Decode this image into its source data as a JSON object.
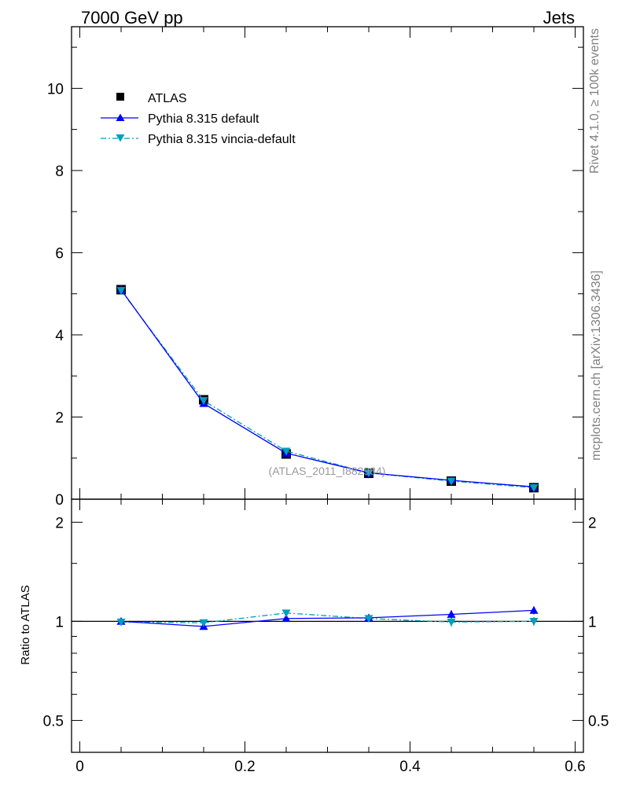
{
  "header": {
    "left_title": "7000 GeV pp",
    "right_title": "Jets"
  },
  "side_text": {
    "rivet": "Rivet 4.1.0, ≥ 100k events",
    "mcplots": "mcplots.cern.ch [arXiv:1306.3436]"
  },
  "watermark": "(ATLAS_2011_I882984)",
  "colors": {
    "data": "#000000",
    "pythia_default": "#0000ff",
    "pythia_vincia": "#009fbf"
  },
  "chart_data": [
    {
      "type": "line",
      "panel": "main",
      "x": [
        0.05,
        0.15,
        0.25,
        0.35,
        0.45,
        0.55
      ],
      "xlim": [
        -0.01,
        0.61
      ],
      "ylim": [
        0,
        11.5
      ],
      "yticks": [
        0,
        2,
        4,
        6,
        8,
        10
      ],
      "ytick_labels": [
        "0",
        "2",
        "4",
        "6",
        "8",
        "10"
      ],
      "legend_position": "top-left",
      "series": [
        {
          "name": "ATLAS",
          "marker": "square",
          "values": [
            5.1,
            2.42,
            1.1,
            0.63,
            0.44,
            0.28
          ]
        },
        {
          "name": "Pythia 8.315 default",
          "marker": "triangle-up",
          "values": [
            5.1,
            2.33,
            1.12,
            0.64,
            0.46,
            0.3
          ]
        },
        {
          "name": "Pythia 8.315 vincia-default",
          "marker": "triangle-down",
          "values": [
            5.08,
            2.4,
            1.17,
            0.64,
            0.44,
            0.28
          ]
        }
      ]
    },
    {
      "type": "line",
      "panel": "ratio",
      "ylabel": "Ratio to ATLAS",
      "x": [
        0.05,
        0.15,
        0.25,
        0.35,
        0.45,
        0.55
      ],
      "xlim": [
        -0.01,
        0.61
      ],
      "ylim": [
        0.4,
        2.35
      ],
      "yscale": "log",
      "yticks": [
        0.5,
        1,
        2
      ],
      "ytick_labels": [
        "0.5",
        "1",
        "2"
      ],
      "xticks": [
        0,
        0.2,
        0.4,
        0.6
      ],
      "xtick_labels": [
        "0",
        "0.2",
        "0.4",
        "0.6"
      ],
      "series": [
        {
          "name": "Pythia 8.315 default",
          "values": [
            1.0,
            0.965,
            1.02,
            1.025,
            1.05,
            1.08
          ],
          "errors": [
            0.01,
            0.012,
            0.015,
            0.02,
            0.03,
            0.03
          ]
        },
        {
          "name": "Pythia 8.315 vincia-default",
          "values": [
            0.995,
            0.99,
            1.06,
            1.02,
            0.995,
            1.0
          ],
          "errors": [
            0.01,
            0.012,
            0.015,
            0.02,
            0.03,
            0.03
          ]
        }
      ]
    }
  ]
}
